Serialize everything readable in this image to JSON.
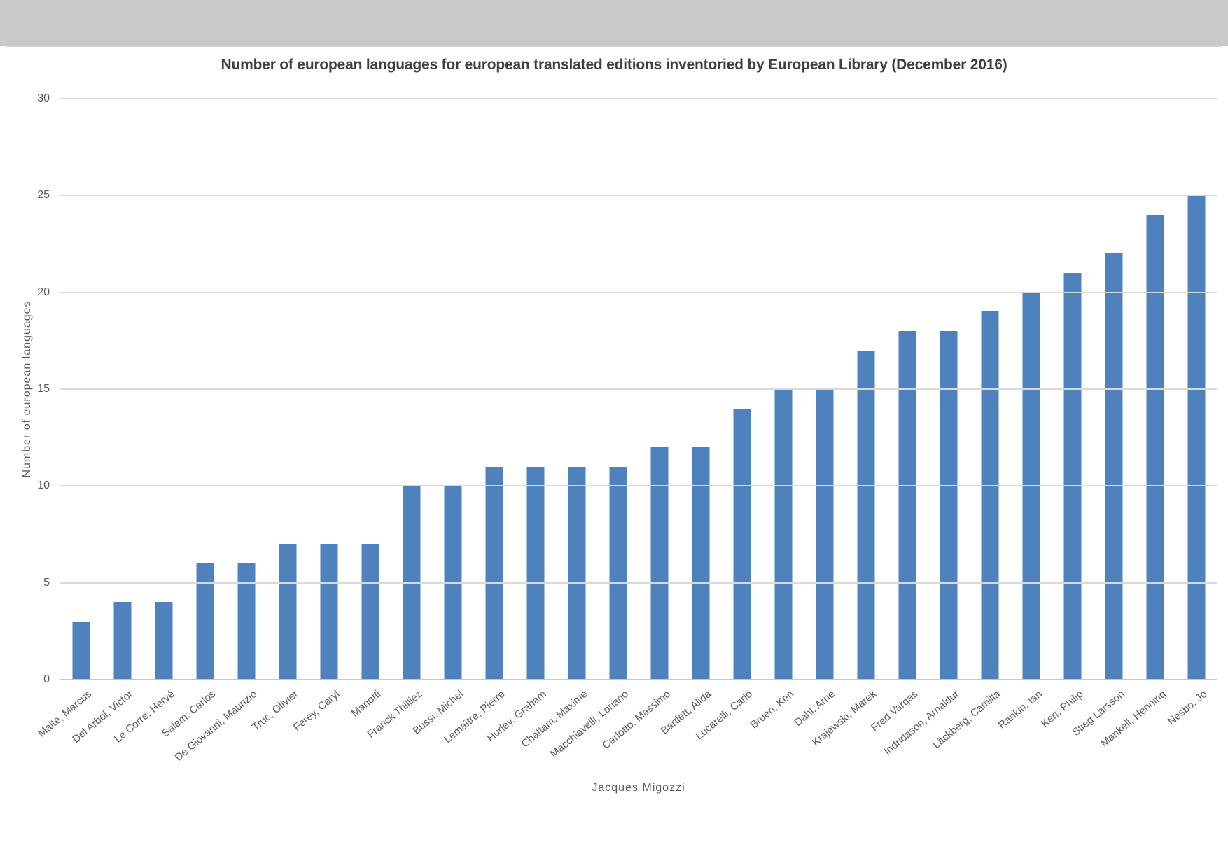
{
  "page": {
    "background_color": "#ffffff",
    "top_strip_color": "#c9c9c9",
    "frame_border_color": "#d4d4d4"
  },
  "chart_data": {
    "type": "bar",
    "title": "Number of european languages for european translated editions inventoried by European Library (December 2016)",
    "xlabel": "Jacques Migozzi",
    "ylabel": "Number of european languages",
    "categories": [
      "Malte, Marcus",
      "Del Arbol, Victor",
      "Le Corre, Hervé",
      "Salem, Carlos",
      "De Giovanni, Maurizio",
      "Truc, Olivier",
      "Ferey, Caryl",
      "Manotti",
      "Franck Thilliez",
      "Bussi, Michel",
      "Lemaître, Pierre",
      "Hurley, Graham",
      "Chattam, Maxime",
      "Macchiavelli, Loriano",
      "Carlotto, Massimo",
      "Bartlett, Alida",
      "Lucarelli, Carlo",
      "Bruen, Ken",
      "Dahl, Arne",
      "Krajewski, Marek",
      "Fred Vargas",
      "Indridason, Arnaldur",
      "Läckberg, Camilla",
      "Rankin, Ian",
      "Kerr, Philip",
      "Stieg Larsson",
      "Mankell, Henning",
      "Nesbo, Jo"
    ],
    "values": [
      3,
      4,
      4,
      6,
      6,
      7,
      7,
      7,
      10,
      10,
      11,
      11,
      11,
      11,
      12,
      12,
      14,
      15,
      15,
      17,
      18,
      18,
      19,
      20,
      21,
      22,
      24,
      25
    ],
    "ylim": [
      0,
      30
    ],
    "yticks": [
      0,
      5,
      10,
      15,
      20,
      25,
      30
    ],
    "bar_color": "#4f81bd",
    "gridline_color": "#d9d9d9",
    "axis_line_color": "#c6c6c6",
    "text_color": "#595959",
    "title_color": "#3f3f3f",
    "grid": "on",
    "legend": "none"
  }
}
